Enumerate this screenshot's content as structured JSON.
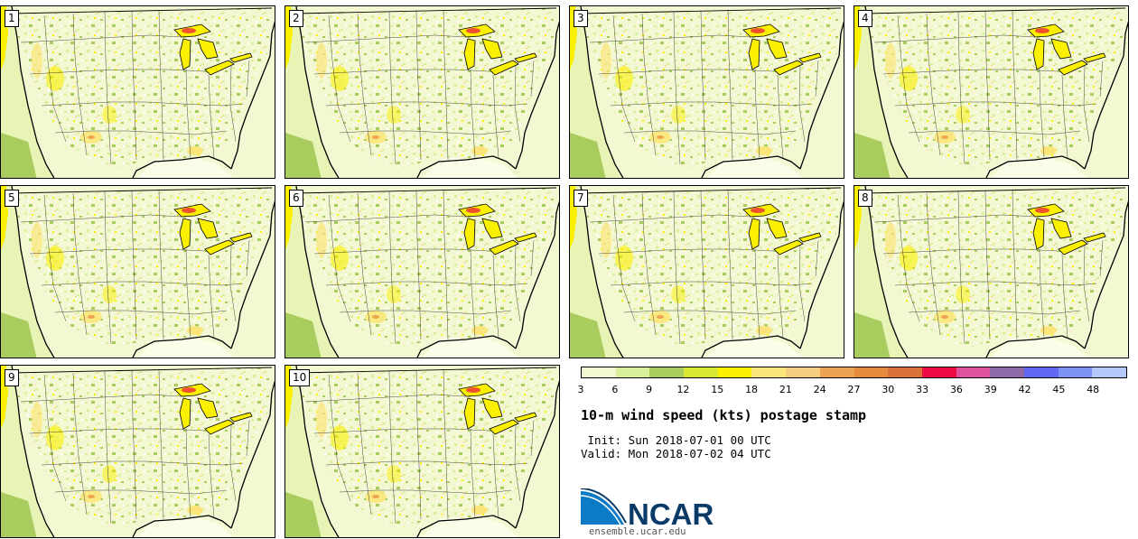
{
  "panels": [
    {
      "label": "1"
    },
    {
      "label": "2"
    },
    {
      "label": "3"
    },
    {
      "label": "4"
    },
    {
      "label": "5"
    },
    {
      "label": "6"
    },
    {
      "label": "7"
    },
    {
      "label": "8"
    },
    {
      "label": "9"
    },
    {
      "label": "10"
    }
  ],
  "colorbar": {
    "colors": [
      "#f3f8d3",
      "#d9ef9c",
      "#a9cc5f",
      "#d6e834",
      "#fbf000",
      "#fbe57a",
      "#f6cc7e",
      "#eda452",
      "#e68a3e",
      "#d97138",
      "#ec0c43",
      "#e051a0",
      "#8f6aa8",
      "#6068f2",
      "#7e92f6",
      "#b4c8fb"
    ],
    "ticks": [
      "3",
      "6",
      "9",
      "12",
      "15",
      "18",
      "21",
      "24",
      "27",
      "30",
      "33",
      "36",
      "39",
      "42",
      "45",
      "48"
    ]
  },
  "title": "10-m wind speed (kts) postage stamp",
  "init": " Init: Sun 2018-07-01 00 UTC",
  "valid": "Valid: Mon 2018-07-02 04 UTC",
  "logo": {
    "text": "NCAR",
    "url": "ensemble.ucar.edu",
    "color": "#0a3a68",
    "swoosh_color": "#0a7bc4"
  }
}
